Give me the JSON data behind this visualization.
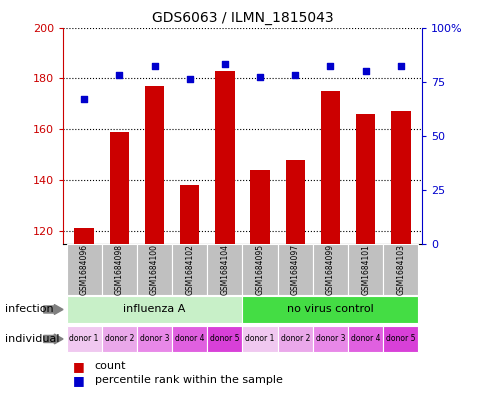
{
  "title": "GDS6063 / ILMN_1815043",
  "samples": [
    "GSM1684096",
    "GSM1684098",
    "GSM1684100",
    "GSM1684102",
    "GSM1684104",
    "GSM1684095",
    "GSM1684097",
    "GSM1684099",
    "GSM1684101",
    "GSM1684103"
  ],
  "counts": [
    121,
    159,
    177,
    138,
    183,
    144,
    148,
    175,
    166,
    167
  ],
  "percentiles": [
    67,
    78,
    82,
    76,
    83,
    77,
    78,
    82,
    80,
    82
  ],
  "ylim_left": [
    115,
    200
  ],
  "ylim_right": [
    0,
    100
  ],
  "yticks_left": [
    120,
    140,
    160,
    180,
    200
  ],
  "yticks_right": [
    0,
    25,
    50,
    75,
    100
  ],
  "infection_groups": [
    {
      "label": "influenza A",
      "start": 0,
      "end": 5,
      "color": "#C8F0C8"
    },
    {
      "label": "no virus control",
      "start": 5,
      "end": 10,
      "color": "#44DD44"
    }
  ],
  "individual_colors_cycle": [
    "#F0C8F0",
    "#EAA8EA",
    "#E888E8",
    "#E060E0",
    "#D840D8"
  ],
  "bar_color": "#CC0000",
  "dot_color": "#0000CC",
  "bar_bottom": 115,
  "bar_width": 0.55,
  "sample_box_color": "#C0C0C0",
  "left_tick_color": "#CC0000",
  "right_tick_color": "#0000CC"
}
